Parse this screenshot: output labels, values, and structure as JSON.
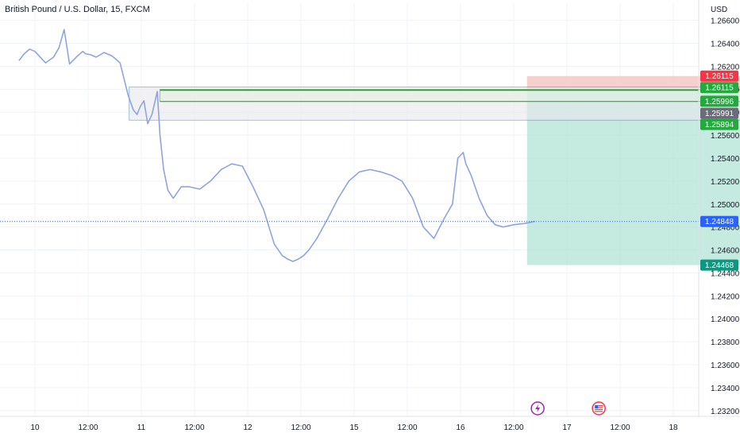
{
  "header": {
    "symbol_title": "British Pound / U.S. Dollar, 15, FXCM",
    "currency": "USD"
  },
  "colors": {
    "candles": "#8fa3e0",
    "grid": "#f0f3fa",
    "box_fill": "#e8e8ee",
    "box_border": "#5b9bd5",
    "target_zone": "#b2e3d4",
    "stop_zone": "#f4c7c7",
    "level_line": "#4caf50",
    "last_price_line": "#2962ff",
    "tag_red": "#f23645",
    "tag_green": "#22ab3c",
    "tag_gray": "#6a6d78",
    "tag_blue": "#2962ff",
    "tag_teal": "#089981"
  },
  "chart_data": {
    "type": "line",
    "title": "British Pound / U.S. Dollar, 15, FXCM",
    "y_unit": "USD",
    "ylim": [
      1.2315,
      1.2675
    ],
    "y_ticks": [
      "1.26600",
      "1.26400",
      "1.26200",
      "1.26000",
      "1.25800",
      "1.25600",
      "1.25400",
      "1.25200",
      "1.25000",
      "1.24800",
      "1.24600",
      "1.24400",
      "1.24200",
      "1.24000",
      "1.23800",
      "1.23600",
      "1.23400",
      "1.23200"
    ],
    "x_labels": [
      "10",
      "12:00",
      "11",
      "12:00",
      "12",
      "12:00",
      "15",
      "12:00",
      "16",
      "12:00",
      "17",
      "12:00",
      "18"
    ],
    "x_label_positions": [
      0,
      1,
      2,
      3,
      4,
      5,
      6,
      7,
      8,
      9,
      10,
      11,
      12
    ],
    "xlim": [
      -0.3,
      13.3
    ],
    "grid": true,
    "series": [
      {
        "x": [
          -0.3,
          -0.2,
          -0.1,
          0.0,
          0.1,
          0.2,
          0.35,
          0.45,
          0.55,
          0.65,
          0.8,
          0.9,
          0.95,
          1.05,
          1.15,
          1.3,
          1.45,
          1.6,
          1.75,
          1.85,
          1.92,
          1.98,
          2.05,
          2.12,
          2.2,
          2.3,
          2.35,
          2.42,
          2.5,
          2.6,
          2.75,
          2.9,
          3.1,
          3.3,
          3.5,
          3.7,
          3.9,
          4.1,
          4.3,
          4.5,
          4.65,
          4.75,
          4.85,
          4.95,
          5.05,
          5.15,
          5.3,
          5.5,
          5.7,
          5.9,
          6.1,
          6.3,
          6.5,
          6.7,
          6.9,
          7.1,
          7.3,
          7.5,
          7.7,
          7.85,
          7.95,
          8.05,
          8.1,
          8.2,
          8.35,
          8.5,
          8.65,
          8.8,
          9.0,
          9.2,
          9.4
        ],
        "y": [
          1.2625,
          1.2631,
          1.2635,
          1.2633,
          1.2628,
          1.2623,
          1.2628,
          1.2636,
          1.2652,
          1.2622,
          1.2629,
          1.2633,
          1.2631,
          1.263,
          1.2628,
          1.2632,
          1.2629,
          1.2623,
          1.2595,
          1.2582,
          1.2578,
          1.2585,
          1.259,
          1.257,
          1.2578,
          1.2598,
          1.256,
          1.253,
          1.2512,
          1.2505,
          1.2515,
          1.2515,
          1.2513,
          1.252,
          1.253,
          1.2535,
          1.2533,
          1.2515,
          1.2495,
          1.2465,
          1.2455,
          1.2452,
          1.245,
          1.2452,
          1.2455,
          1.246,
          1.247,
          1.2487,
          1.2505,
          1.252,
          1.2528,
          1.253,
          1.2528,
          1.2525,
          1.252,
          1.2505,
          1.248,
          1.247,
          1.2488,
          1.25,
          1.254,
          1.2545,
          1.2535,
          1.2525,
          1.2505,
          1.249,
          1.2482,
          1.248,
          1.2482,
          1.2483,
          1.24848
        ]
      }
    ],
    "annotations": {
      "consolidation_box": {
        "x0": 1.92,
        "x1": 2.35,
        "y_top": 1.2602,
        "y_bottom": 1.2573
      },
      "horizontal_box": {
        "x0": 2.35,
        "x1": 13.3,
        "y_top": 1.25996,
        "y_bottom": 1.25894
      },
      "levels": [
        1.25996,
        1.25894,
        1.25991
      ],
      "position": {
        "x0": 9.25,
        "x1": 13.3,
        "entry": 1.25991,
        "stop": 1.26115,
        "target": 1.24468
      },
      "last_price": 1.24848,
      "event_icons": [
        {
          "x": 9.45,
          "kind": "lightning"
        },
        {
          "x": 10.6,
          "kind": "us-flag"
        }
      ]
    },
    "price_tags": [
      {
        "value": 1.26115,
        "label": "1.26115",
        "color_key": "tag_red"
      },
      {
        "value": 1.26115,
        "label": "1.26115",
        "color_key": "tag_green"
      },
      {
        "value": 1.25996,
        "label": "1.25996",
        "color_key": "tag_green"
      },
      {
        "value": 1.25991,
        "label": "1.25991",
        "color_key": "tag_gray"
      },
      {
        "value": 1.25894,
        "label": "1.25894",
        "color_key": "tag_green"
      },
      {
        "value": 1.24848,
        "label": "1.24848",
        "color_key": "tag_blue"
      },
      {
        "value": 1.24468,
        "label": "1.24468",
        "color_key": "tag_teal"
      }
    ]
  }
}
